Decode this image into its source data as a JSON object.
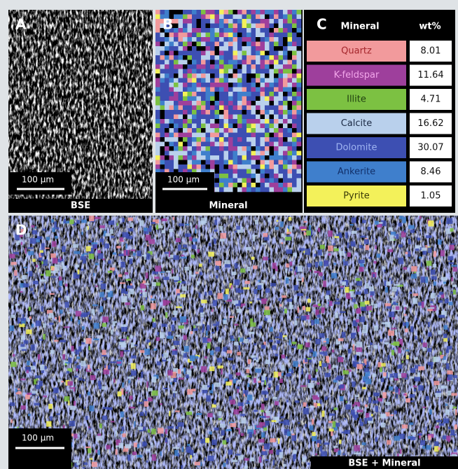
{
  "panels": [
    {
      "label": "A",
      "scale_bar": "100 µm",
      "caption": "BSE"
    },
    {
      "label": "B",
      "scale_bar": "100 µm",
      "caption": "Mineral"
    },
    {
      "label": "D",
      "scale_bar": "100 µm",
      "caption": "BSE + Mineral"
    }
  ],
  "table": {
    "label": "C",
    "header": [
      "Mineral",
      "wt%"
    ],
    "rows": [
      {
        "mineral": "Quartz",
        "wt": 8.01,
        "color": "#f29a9c",
        "text_color": "#a4262c"
      },
      {
        "mineral": "K-feldspar",
        "wt": 11.64,
        "color": "#9e3f9c",
        "text_color": "#f2a6ea"
      },
      {
        "mineral": "Illite",
        "wt": 4.71,
        "color": "#7cc142",
        "text_color": "#1f3f10"
      },
      {
        "mineral": "Calcite",
        "wt": 16.62,
        "color": "#b9d0ec",
        "text_color": "#1b2a44"
      },
      {
        "mineral": "Dolomite",
        "wt": 30.07,
        "color": "#3d4fb2",
        "text_color": "#9fb4f2"
      },
      {
        "mineral": "Ankerite",
        "wt": 8.46,
        "color": "#3f7fcc",
        "text_color": "#12306a"
      },
      {
        "mineral": "Pyrite",
        "wt": 1.05,
        "color": "#f3f15a",
        "text_color": "#3a3a08"
      }
    ]
  }
}
